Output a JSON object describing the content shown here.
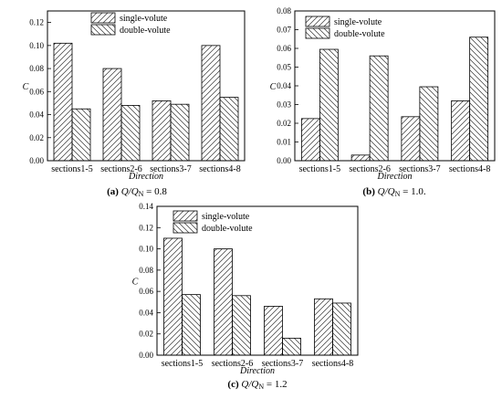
{
  "legend": [
    "single-volute",
    "double-volute"
  ],
  "chart_data": [
    {
      "type": "bar",
      "caption": {
        "label": "(a)",
        "text": "Q/Q",
        "sub": "N",
        "rest": " = 0.8"
      },
      "categories": [
        "sections1-5",
        "sections2-6",
        "sections3-7",
        "sections4-8"
      ],
      "series": [
        {
          "name": "single-volute",
          "values": [
            0.102,
            0.08,
            0.052,
            0.1
          ]
        },
        {
          "name": "double-volute",
          "values": [
            0.045,
            0.048,
            0.049,
            0.055
          ]
        }
      ],
      "xlabel": "Direction",
      "ylabel": "C",
      "ylim": [
        0,
        0.13
      ],
      "yticks": [
        "0.00",
        "0.02",
        "0.04",
        "0.06",
        "0.08",
        "0.10",
        "0.12"
      ],
      "legend_position": "top-center",
      "grid": false
    },
    {
      "type": "bar",
      "caption": {
        "label": "(b)",
        "text": "Q/Q",
        "sub": "N",
        "rest": " = 1.0."
      },
      "categories": [
        "sections1-5",
        "sections2-6",
        "sections3-7",
        "sections4-8"
      ],
      "series": [
        {
          "name": "single-volute",
          "values": [
            0.0225,
            0.003,
            0.0235,
            0.032
          ]
        },
        {
          "name": "double-volute",
          "values": [
            0.0595,
            0.056,
            0.0395,
            0.066
          ]
        }
      ],
      "xlabel": "Direction",
      "ylabel": "C",
      "ylim": [
        0,
        0.08
      ],
      "yticks": [
        "0.00",
        "0.01",
        "0.02",
        "0.03",
        "0.04",
        "0.05",
        "0.06",
        "0.07",
        "0.08"
      ],
      "legend_position": "top-center",
      "grid": false
    },
    {
      "type": "bar",
      "caption": {
        "label": "(c)",
        "text": "Q/Q",
        "sub": "N",
        "rest": " = 1.2"
      },
      "categories": [
        "sections1-5",
        "sections2-6",
        "sections3-7",
        "sections4-8"
      ],
      "series": [
        {
          "name": "single-volute",
          "values": [
            0.11,
            0.1,
            0.046,
            0.053
          ]
        },
        {
          "name": "double-volute",
          "values": [
            0.057,
            0.056,
            0.016,
            0.049
          ]
        }
      ],
      "xlabel": "Direction",
      "ylabel": "C",
      "ylim": [
        0,
        0.14
      ],
      "yticks": [
        "0.00",
        "0.02",
        "0.04",
        "0.06",
        "0.08",
        "0.10",
        "0.12",
        "0.14"
      ],
      "legend_position": "top-left",
      "grid": false
    }
  ]
}
